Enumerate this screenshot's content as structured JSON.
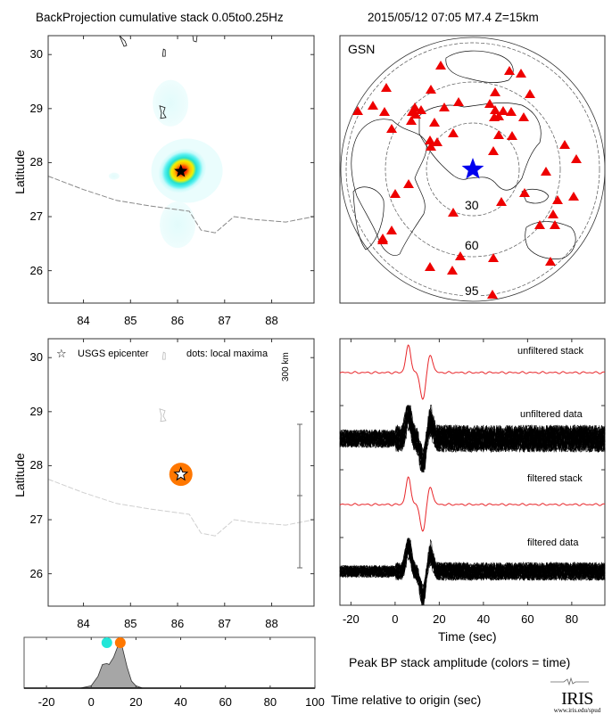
{
  "header": {
    "left_title": "BackProjection cumulative stack 0.05to0.25Hz",
    "right_title": "2015/05/12 07:05  M7.4  Z=15km"
  },
  "colors": {
    "peak_orange": "#ff7700",
    "early_cyan": "#22e6d8",
    "station_red": "#ee0000",
    "epicenter_blue": "#0000ee",
    "stack_red": "#e8262a",
    "data_black": "#000000",
    "fill_gray": "#a6a6a6"
  },
  "chart_data": [
    {
      "id": "bp-map",
      "type": "heatmap",
      "title": "BackProjection cumulative stack 0.05to0.25Hz",
      "xlabel": "",
      "ylabel": "Latitude",
      "xlim": [
        83.25,
        88.9
      ],
      "ylim": [
        25.4,
        30.35
      ],
      "xticks": [
        "84",
        "85",
        "86",
        "87",
        "88"
      ],
      "yticks": [
        "26",
        "27",
        "28",
        "29",
        "30"
      ],
      "epicenter": {
        "lon": 86.07,
        "lat": 27.84,
        "marker": "black star"
      },
      "energy_blobs": [
        {
          "lon": 86.1,
          "lat": 27.85,
          "level": "peak",
          "note": "red/yellow/cyan main lobe"
        },
        {
          "lon": 85.85,
          "lat": 29.1,
          "level": "low"
        },
        {
          "lon": 86.0,
          "lat": 26.85,
          "level": "low"
        },
        {
          "lon": 84.65,
          "lat": 27.75,
          "level": "low"
        }
      ],
      "border_line": [
        [
          83.25,
          27.75
        ],
        [
          84.0,
          27.5
        ],
        [
          84.7,
          27.3
        ],
        [
          85.4,
          27.2
        ],
        [
          86.25,
          27.1
        ],
        [
          86.5,
          26.75
        ],
        [
          86.8,
          26.7
        ],
        [
          87.2,
          27.0
        ],
        [
          87.6,
          26.95
        ],
        [
          88.3,
          26.9
        ],
        [
          88.9,
          27.0
        ]
      ]
    },
    {
      "id": "station-map",
      "type": "scatter",
      "title": "2015/05/12 07:05  M7.4  Z=15km",
      "network_label": "GSN",
      "distance_rings_deg": [
        "30",
        "60",
        "95"
      ],
      "center": "epicenter (blue star)",
      "station_count": 58
    },
    {
      "id": "local-maxima-map",
      "type": "scatter",
      "ylabel": "Latitude",
      "xlim": [
        83.25,
        88.9
      ],
      "ylim": [
        25.4,
        30.35
      ],
      "xticks": [
        "84",
        "85",
        "86",
        "87",
        "88"
      ],
      "yticks": [
        "26",
        "27",
        "28",
        "29",
        "30"
      ],
      "legend": {
        "epicenter_label": "USGS epicenter",
        "dots_label": "dots: local maxima",
        "position": "top-left"
      },
      "scale_bar_label": "300 km",
      "points": [
        {
          "lon": 86.07,
          "lat": 27.84,
          "color": "orange",
          "time_sec": 13
        }
      ],
      "epicenter": {
        "lon": 86.07,
        "lat": 27.84,
        "marker": "white star"
      }
    },
    {
      "id": "seismograms",
      "type": "line",
      "xlabel": "Time (sec)",
      "xlim": [
        -25,
        95
      ],
      "xticks": [
        "-20",
        "0",
        "20",
        "40",
        "60",
        "80"
      ],
      "trace_labels": [
        "unfiltered stack",
        "unfiltered data",
        "filtered stack",
        "filtered data"
      ],
      "stack_pulses": [
        {
          "t": 6,
          "amp": 1.0
        },
        {
          "t": 12.5,
          "amp": -1.0
        },
        {
          "t": 16,
          "amp": 0.65
        }
      ]
    },
    {
      "id": "peak-amplitude",
      "type": "area",
      "title": "Peak BP stack amplitude (colors = time)",
      "xlabel": "Time relative to origin (sec)",
      "xlim": [
        -30,
        100
      ],
      "xticks": [
        "-20",
        "0",
        "20",
        "40",
        "60",
        "80",
        "100"
      ],
      "x": [
        -30,
        -5,
        0,
        3,
        5,
        7,
        8,
        10,
        12,
        13,
        14,
        16,
        18,
        20,
        23,
        100
      ],
      "y": [
        0,
        0,
        0.05,
        0.25,
        0.5,
        0.52,
        0.5,
        0.65,
        0.9,
        0.95,
        0.85,
        0.45,
        0.15,
        0.05,
        0,
        0
      ],
      "markers": [
        {
          "t": 7,
          "color": "cyan"
        },
        {
          "t": 13,
          "color": "orange"
        }
      ]
    }
  ],
  "footer": {
    "logo_text": "IRIS",
    "logo_url_text": "www.iris.edu/spud"
  }
}
